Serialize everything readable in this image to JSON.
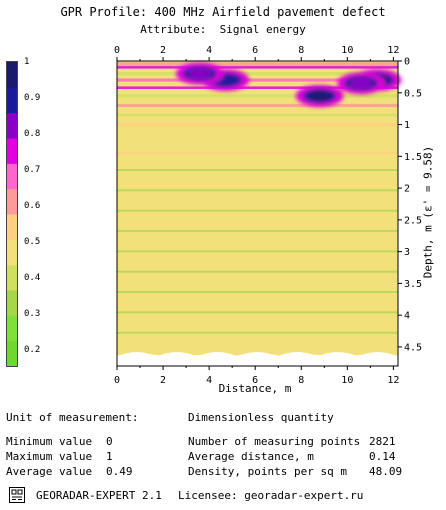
{
  "header": {
    "title": "GPR Profile: 400 MHz Airfield pavement defect",
    "subtitle": "Attribute:  Signal energy"
  },
  "chart_data": {
    "type": "heatmap",
    "xlabel": "Distance, m",
    "ylabel": "Depth, m (ε' = 9.58)",
    "xlim": [
      0,
      12.2
    ],
    "ylim": [
      0,
      4.8
    ],
    "x_ticks": [
      "0",
      "2",
      "4",
      "6",
      "8",
      "10",
      "12"
    ],
    "y_ticks": [
      "0",
      "0.5",
      "1",
      "1.5",
      "2",
      "2.5",
      "3",
      "3.5",
      "4",
      "4.5"
    ],
    "colorbar_ticks": [
      "1",
      "0.9",
      "0.8",
      "0.7",
      "0.6",
      "0.5",
      "0.4",
      "0.3",
      "0.2"
    ],
    "colorbar_range": [
      0.15,
      1.0
    ],
    "colorbar_colors": [
      "#6fd82c",
      "#7fe03a",
      "#a6d64a",
      "#cfe060",
      "#f2e07a",
      "#ffcf80",
      "#ff9a9a",
      "#ff66cc",
      "#e000e0",
      "#8a00c8",
      "#1a1a9c",
      "#1a1a6e"
    ],
    "anomalies": [
      {
        "x_center": 4.7,
        "depth_center": 0.3,
        "value": 0.92
      },
      {
        "x_center": 8.8,
        "depth_center": 0.55,
        "value": 0.95
      },
      {
        "x_center": 11.3,
        "depth_center": 0.3,
        "value": 0.97
      },
      {
        "x_center": 3.6,
        "depth_center": 0.2,
        "value": 0.82
      },
      {
        "x_center": 10.6,
        "depth_center": 0.35,
        "value": 0.85
      }
    ],
    "bright_layer_depth": 0.1,
    "background_value": 0.5
  },
  "stats": {
    "unit_label": "Unit of measurement:",
    "unit_value": "Dimensionless quantity",
    "min_label": "Minimum value",
    "min_value": "0",
    "max_label": "Maximum value",
    "max_value": "1",
    "avg_label": "Average value",
    "avg_value": "0.49",
    "points_label": "Number of measuring points",
    "points_value": "2821",
    "avgdist_label": "Average distance, m",
    "avgdist_value": "0.14",
    "density_label": "Density, points per sq m",
    "density_value": "48.09"
  },
  "footer": {
    "app": "GEORADAR-EXPERT 2.1",
    "licensee": "Licensee: georadar-expert.ru",
    "logo_icon": "georadar-logo-icon"
  }
}
